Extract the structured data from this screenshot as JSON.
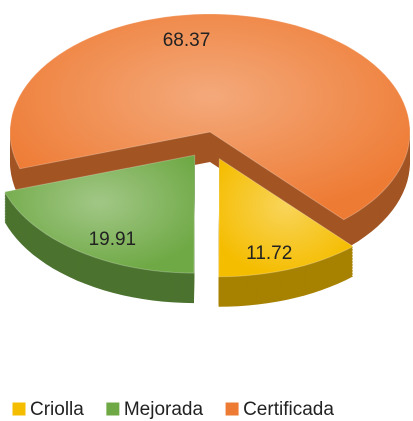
{
  "chart_data": {
    "type": "pie",
    "categories": [
      "Criolla",
      "Mejorada",
      "Certificada"
    ],
    "values": [
      11.72,
      19.91,
      68.37
    ],
    "colors": [
      "#f5bd00",
      "#6fa945",
      "#ee7b34"
    ],
    "exploded": [
      true,
      true,
      false
    ],
    "legend": "bottom"
  }
}
